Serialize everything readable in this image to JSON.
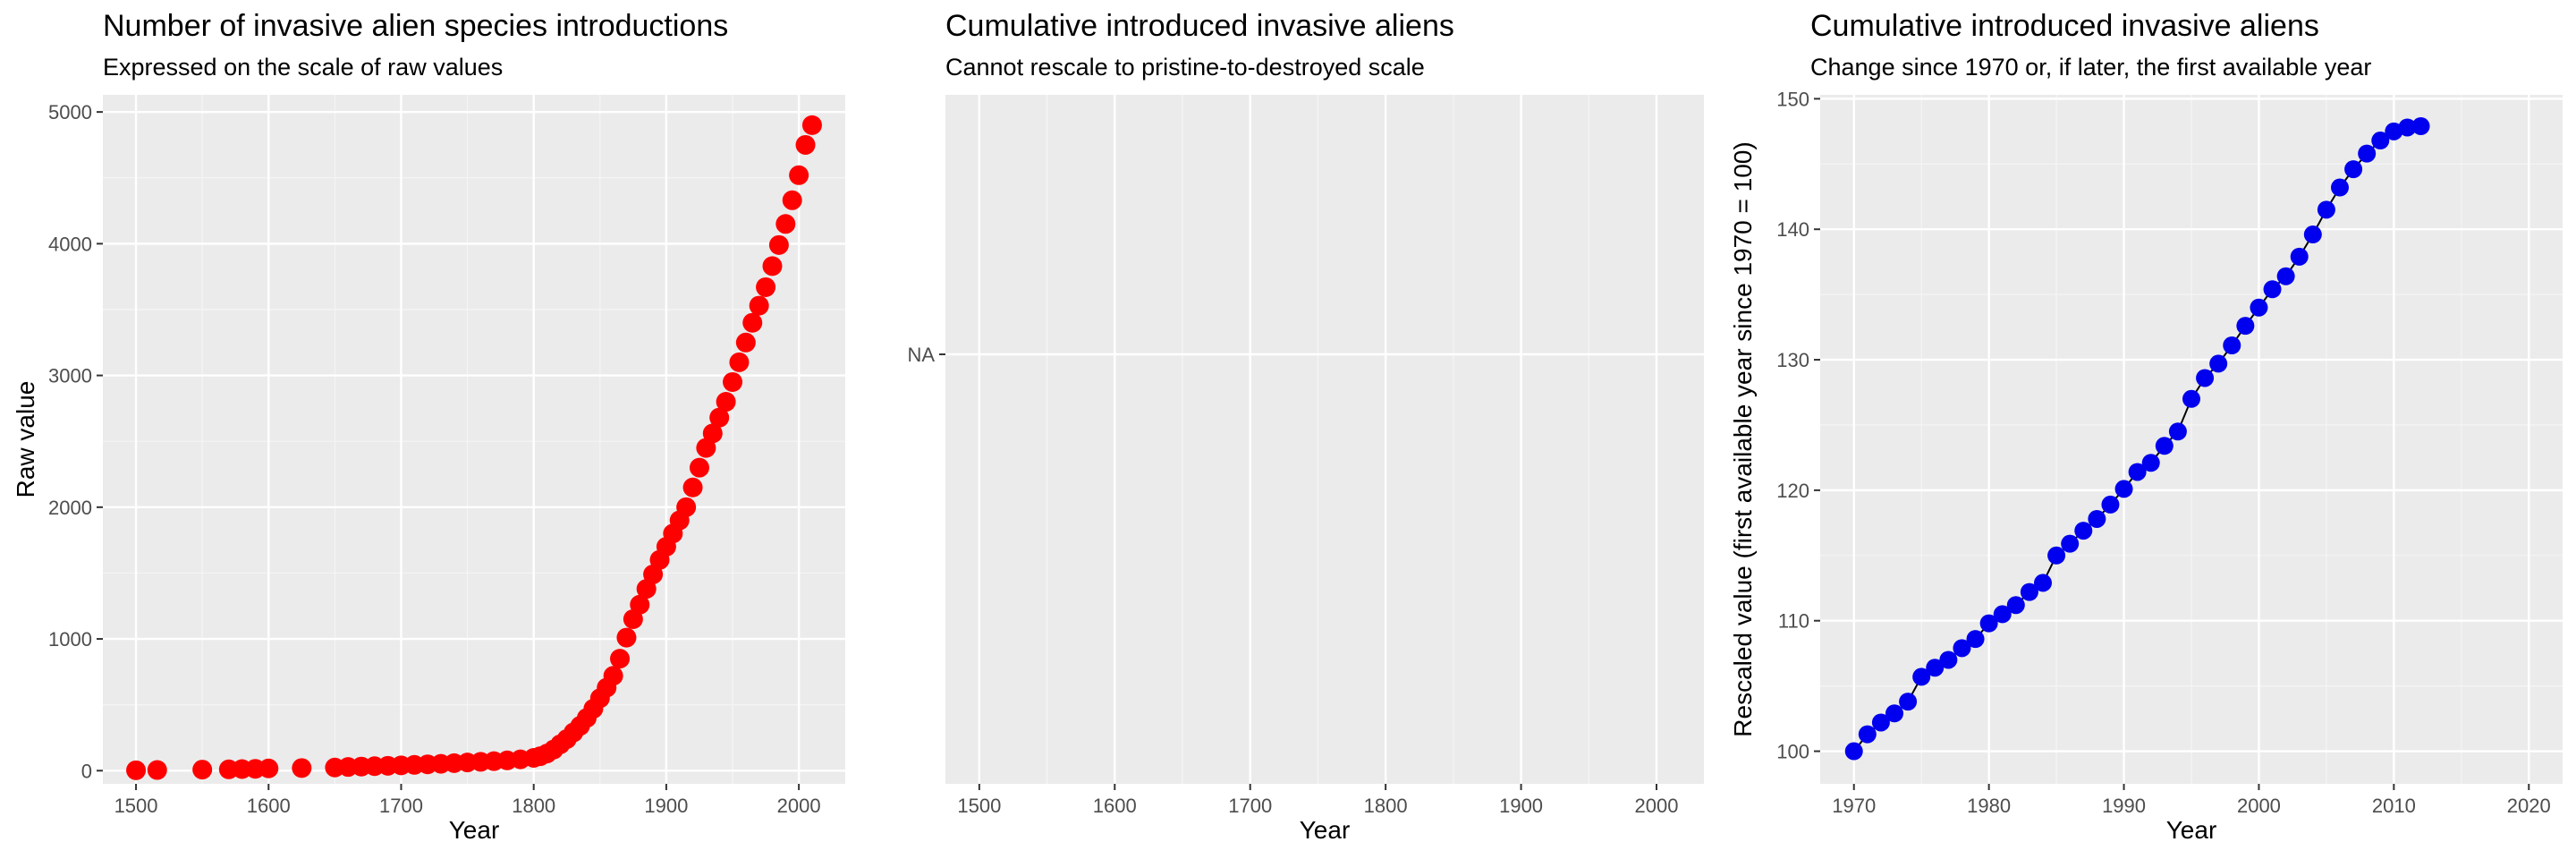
{
  "chart_data": [
    {
      "type": "scatter",
      "title": "Number of invasive alien species introductions",
      "subtitle": "Expressed on the scale of raw values",
      "xlabel": "Year",
      "ylabel": "Raw value",
      "xlim": [
        1475,
        2035
      ],
      "ylim": [
        -100,
        5130
      ],
      "x_ticks": [
        1500,
        1600,
        1700,
        1800,
        1900,
        2000
      ],
      "y_ticks": [
        0,
        1000,
        2000,
        3000,
        4000,
        5000
      ],
      "grid": true,
      "point_color": "#ff0000",
      "series": [
        {
          "x": [
            1500,
            1516,
            1550,
            1570,
            1580,
            1590,
            1600,
            1625,
            1650,
            1660,
            1670,
            1680,
            1690,
            1700,
            1710,
            1720,
            1730,
            1740,
            1750,
            1760,
            1770,
            1780,
            1790,
            1800,
            1805,
            1810,
            1815,
            1820,
            1825,
            1830,
            1835,
            1840,
            1845,
            1850,
            1855,
            1860,
            1865,
            1870,
            1875,
            1880,
            1885,
            1890,
            1895,
            1900,
            1905,
            1910,
            1915,
            1920,
            1925,
            1930,
            1935,
            1940,
            1945,
            1950,
            1955,
            1960,
            1965,
            1970,
            1975,
            1980,
            1985,
            1990,
            1995,
            2000,
            2005,
            2010
          ],
          "y": [
            3,
            5,
            8,
            10,
            12,
            14,
            17,
            20,
            24,
            28,
            31,
            34,
            37,
            40,
            44,
            48,
            52,
            57,
            62,
            67,
            72,
            78,
            86,
            97,
            110,
            130,
            160,
            200,
            240,
            290,
            340,
            400,
            470,
            550,
            630,
            720,
            850,
            1010,
            1150,
            1260,
            1380,
            1490,
            1600,
            1700,
            1800,
            1900,
            2000,
            2150,
            2300,
            2450,
            2560,
            2680,
            2800,
            2950,
            3100,
            3250,
            3400,
            3530,
            3670,
            3830,
            3990,
            4150,
            4330,
            4520,
            4750,
            4900
          ]
        }
      ]
    },
    {
      "type": "line",
      "title": "Cumulative introduced invasive aliens",
      "subtitle": "Cannot rescale to pristine-to-destroyed scale",
      "xlabel": "Year",
      "ylabel": "",
      "xlim": [
        1475,
        2035
      ],
      "x_ticks": [
        1500,
        1600,
        1700,
        1800,
        1900,
        2000
      ],
      "y_ticks": [
        "NA"
      ],
      "grid": true,
      "series": []
    },
    {
      "type": "line",
      "title": "Cumulative introduced invasive aliens",
      "subtitle": "Change since 1970 or, if later, the first available year",
      "xlabel": "Year",
      "ylabel": "Rescaled value (first available year since 1970 = 100)",
      "xlim": [
        1967.5,
        2022.5
      ],
      "ylim": [
        97.5,
        150.3
      ],
      "x_ticks": [
        1970,
        1980,
        1990,
        2000,
        2010,
        2020
      ],
      "y_ticks": [
        100,
        110,
        120,
        130,
        140,
        150
      ],
      "grid": true,
      "point_color": "#0000ee",
      "series": [
        {
          "x": [
            1970,
            1971,
            1972,
            1973,
            1974,
            1975,
            1976,
            1977,
            1978,
            1979,
            1980,
            1981,
            1982,
            1983,
            1984,
            1985,
            1986,
            1987,
            1988,
            1989,
            1990,
            1991,
            1992,
            1993,
            1994,
            1995,
            1996,
            1997,
            1998,
            1999,
            2000,
            2001,
            2002,
            2003,
            2004,
            2005,
            2006,
            2007,
            2008,
            2009,
            2010,
            2011,
            2012
          ],
          "y": [
            100.0,
            101.3,
            102.2,
            102.9,
            103.8,
            105.7,
            106.4,
            107.0,
            107.9,
            108.6,
            109.8,
            110.5,
            111.2,
            112.2,
            112.9,
            115.0,
            115.9,
            116.9,
            117.8,
            118.9,
            120.1,
            121.4,
            122.1,
            123.4,
            124.5,
            127.0,
            128.6,
            129.7,
            131.1,
            132.6,
            134.0,
            135.4,
            136.4,
            137.9,
            139.6,
            141.5,
            143.2,
            144.6,
            145.8,
            146.8,
            147.5,
            147.8,
            147.9
          ]
        }
      ]
    }
  ]
}
